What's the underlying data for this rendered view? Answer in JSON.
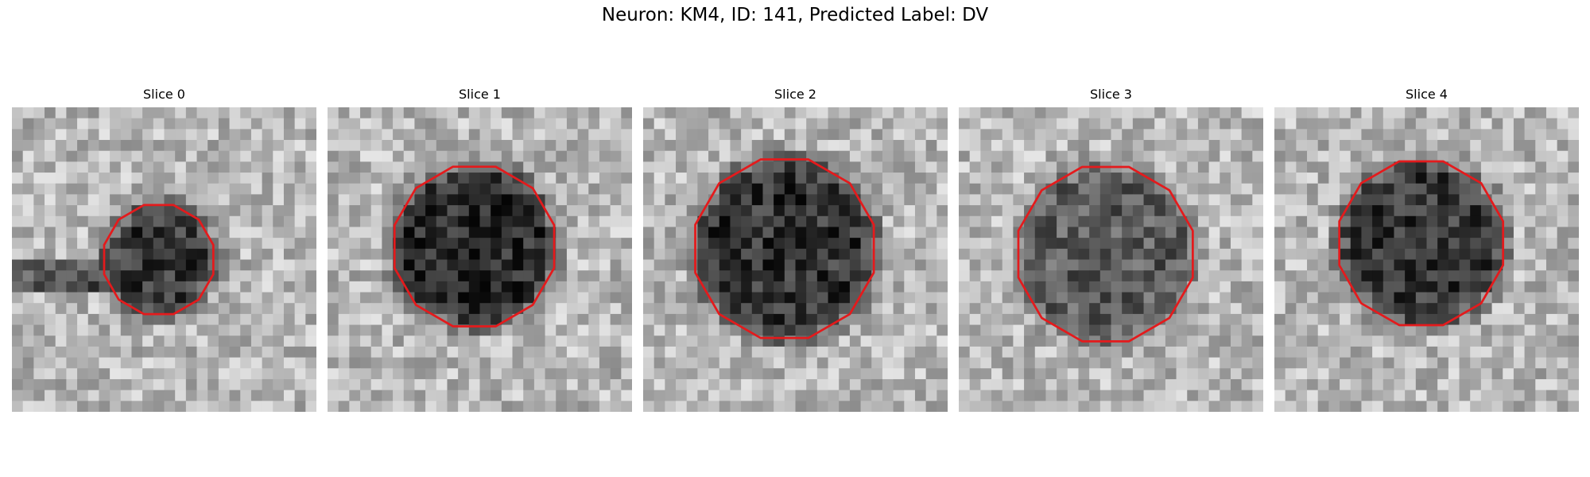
{
  "figure": {
    "title": "Neuron: KM4, ID: 141, Predicted Label: DV",
    "contour_color": "#e41a1c"
  },
  "slices": [
    {
      "label": "Slice 0",
      "blob": {
        "cx": 13.5,
        "cy": 14.0,
        "r": 5.2,
        "core": 0.22
      },
      "streak": true
    },
    {
      "label": "Slice 1",
      "blob": {
        "cx": 13.5,
        "cy": 12.8,
        "r": 7.6,
        "core": 0.16
      },
      "streak": false
    },
    {
      "label": "Slice 2",
      "blob": {
        "cx": 13.0,
        "cy": 13.0,
        "r": 8.5,
        "core": 0.2
      },
      "streak": false
    },
    {
      "label": "Slice 3",
      "blob": {
        "cx": 13.5,
        "cy": 13.5,
        "r": 8.3,
        "core": 0.36
      },
      "streak": false
    },
    {
      "label": "Slice 4",
      "blob": {
        "cx": 13.5,
        "cy": 12.5,
        "r": 7.8,
        "core": 0.22
      },
      "streak": false
    }
  ]
}
